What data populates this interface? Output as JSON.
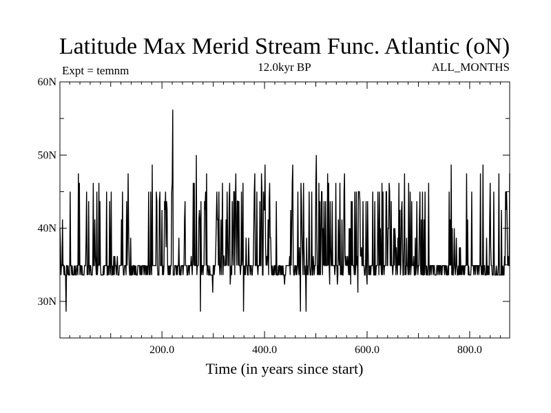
{
  "chart_data": {
    "type": "line",
    "title": "Latitude Max Merid Stream Func. Atlantic (oN)",
    "subtitle_left": "Expt = temnm",
    "subtitle_center": "12.0kyr BP",
    "subtitle_right": "ALL_MONTHS",
    "xlabel": "Time (in years since start)",
    "ylabel": "",
    "xlim": [
      1,
      878
    ],
    "ylim": [
      25,
      60
    ],
    "xticks": [
      200,
      400,
      600,
      800
    ],
    "xtick_labels": [
      "200.0",
      "400.0",
      "600.0",
      "800.0"
    ],
    "yticks": [
      30,
      40,
      50,
      60
    ],
    "ytick_labels": [
      "30N",
      "40N",
      "50N",
      "60N"
    ],
    "grid": false,
    "levels": [
      28.6,
      31.2,
      32.3,
      33.6,
      34.9,
      36.2,
      37.4,
      38.7,
      40.0,
      41.2,
      42.5,
      43.7,
      45.0,
      46.2,
      47.5,
      48.7,
      50.0,
      56.2
    ],
    "level_weights": [
      0.004,
      0.005,
      0.02,
      0.16,
      0.33,
      0.06,
      0.04,
      0.03,
      0.03,
      0.03,
      0.04,
      0.07,
      0.12,
      0.03,
      0.02,
      0.004,
      0.002,
      0.001
    ],
    "extremes": [
      {
        "x": 13,
        "y": 28.6
      },
      {
        "x": 275,
        "y": 28.6
      },
      {
        "x": 470,
        "y": 28.6
      },
      {
        "x": 221,
        "y": 56.2
      },
      {
        "x": 826,
        "y": 48.7
      },
      {
        "x": 582,
        "y": 31.2
      }
    ],
    "seed": 12
  }
}
